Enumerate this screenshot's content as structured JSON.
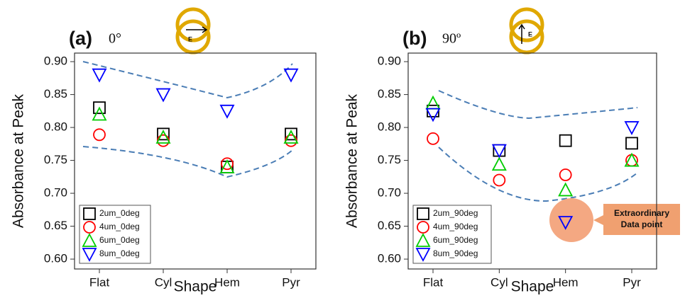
{
  "chart_data": [
    {
      "type": "scatter",
      "panel_label": "(a)",
      "angle_label": "0°",
      "field_label": "E",
      "x_label": "Shape",
      "y_label": "Absorbance at Peak",
      "categories": [
        "Flat",
        "Cyl",
        "Hem",
        "Pyr"
      ],
      "ylim": [
        0.585,
        0.913
      ],
      "yticks": [
        {
          "value": 0.6,
          "label": "0.60"
        },
        {
          "value": 0.65,
          "label": "0.65"
        },
        {
          "value": 0.7,
          "label": "0.70"
        },
        {
          "value": 0.75,
          "label": "0.75"
        },
        {
          "value": 0.8,
          "label": "0.80"
        },
        {
          "value": 0.85,
          "label": "0.85"
        },
        {
          "value": 0.9,
          "label": "0.90"
        }
      ],
      "series": [
        {
          "name": "2um_0deg",
          "color": "#000000",
          "marker": "square",
          "values": [
            0.83,
            0.79,
            0.74,
            0.79
          ]
        },
        {
          "name": "4um_0deg",
          "color": "#ff0000",
          "marker": "circle",
          "values": [
            0.789,
            0.78,
            0.745,
            0.78
          ]
        },
        {
          "name": "6um_0deg",
          "color": "#00cc00",
          "marker": "triangle",
          "values": [
            0.82,
            0.785,
            0.74,
            0.785
          ]
        },
        {
          "name": "8um_0deg",
          "color": "#0000ff",
          "marker": "triangle-down",
          "values": [
            0.88,
            0.85,
            0.825,
            0.88
          ]
        }
      ]
    },
    {
      "type": "scatter",
      "panel_label": "(b)",
      "angle_label": "90º",
      "field_label": "E",
      "x_label": "Shape",
      "y_label": "Absorbance at Peak",
      "categories": [
        "Flat",
        "Cyl",
        "Hem",
        "Pyr"
      ],
      "ylim": [
        0.585,
        0.913
      ],
      "yticks": [
        {
          "value": 0.6,
          "label": "0.60"
        },
        {
          "value": 0.65,
          "label": "0.65"
        },
        {
          "value": 0.7,
          "label": "0.70"
        },
        {
          "value": 0.75,
          "label": "0.75"
        },
        {
          "value": 0.8,
          "label": "0.80"
        },
        {
          "value": 0.85,
          "label": "0.85"
        },
        {
          "value": 0.9,
          "label": "0.90"
        }
      ],
      "annotation": [
        "Extraordinary",
        "Data point"
      ],
      "series": [
        {
          "name": "2um_90deg",
          "color": "#000000",
          "marker": "square",
          "values": [
            0.825,
            0.765,
            0.78,
            0.776
          ]
        },
        {
          "name": "4um_90deg",
          "color": "#ff0000",
          "marker": "circle",
          "values": [
            0.783,
            0.72,
            0.728,
            0.75
          ]
        },
        {
          "name": "6um_90deg",
          "color": "#00cc00",
          "marker": "triangle",
          "values": [
            0.837,
            0.744,
            0.705,
            0.75
          ]
        },
        {
          "name": "8um_90deg",
          "color": "#0000ff",
          "marker": "triangle-down",
          "values": [
            0.82,
            0.765,
            0.656,
            0.8
          ]
        }
      ]
    }
  ]
}
